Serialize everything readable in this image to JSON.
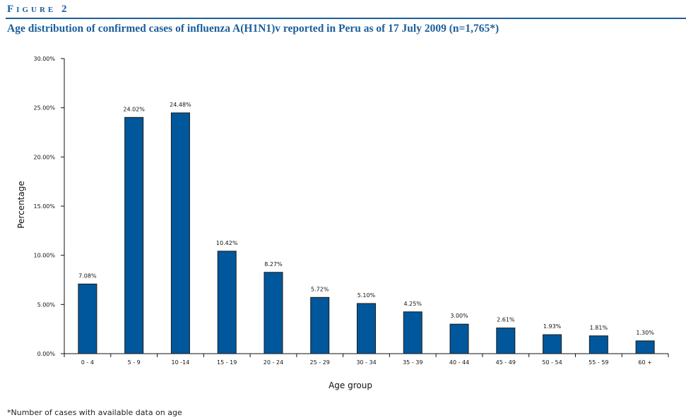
{
  "figure": {
    "label": "Figure 2",
    "title": "Age distribution of confirmed cases of influenza A(H1N1)v reported in Peru as of 17 July 2009 (n=1,765*)",
    "footnote": "*Number of cases with available data on age"
  },
  "colors": {
    "accent": "#1b5e9a",
    "bar": "#00579b",
    "bar_stroke": "#1a1a1a"
  },
  "chart_data": {
    "type": "bar",
    "xlabel": "Age group",
    "ylabel": "Percentage",
    "ylim": [
      0,
      30
    ],
    "yticks": [
      "0.00%",
      "5.00%",
      "10.00%",
      "15.00%",
      "20.00%",
      "25.00%",
      "30.00%"
    ],
    "grid": false,
    "categories": [
      "0 - 4",
      "5 - 9",
      "10 -14",
      "15 - 19",
      "20 - 24",
      "25 - 29",
      "30 - 34",
      "35 - 39",
      "40 - 44",
      "45 - 49",
      "50 - 54",
      "55 - 59",
      "60 +"
    ],
    "values": [
      7.08,
      24.02,
      24.48,
      10.42,
      8.27,
      5.72,
      5.1,
      4.25,
      3.0,
      2.61,
      1.93,
      1.81,
      1.3
    ],
    "value_labels": [
      "7.08%",
      "24.02%",
      "24.48%",
      "10.42%",
      "8.27%",
      "5.72%",
      "5.10%",
      "4.25%",
      "3.00%",
      "2.61%",
      "1.93%",
      "1.81%",
      "1.30%"
    ]
  }
}
